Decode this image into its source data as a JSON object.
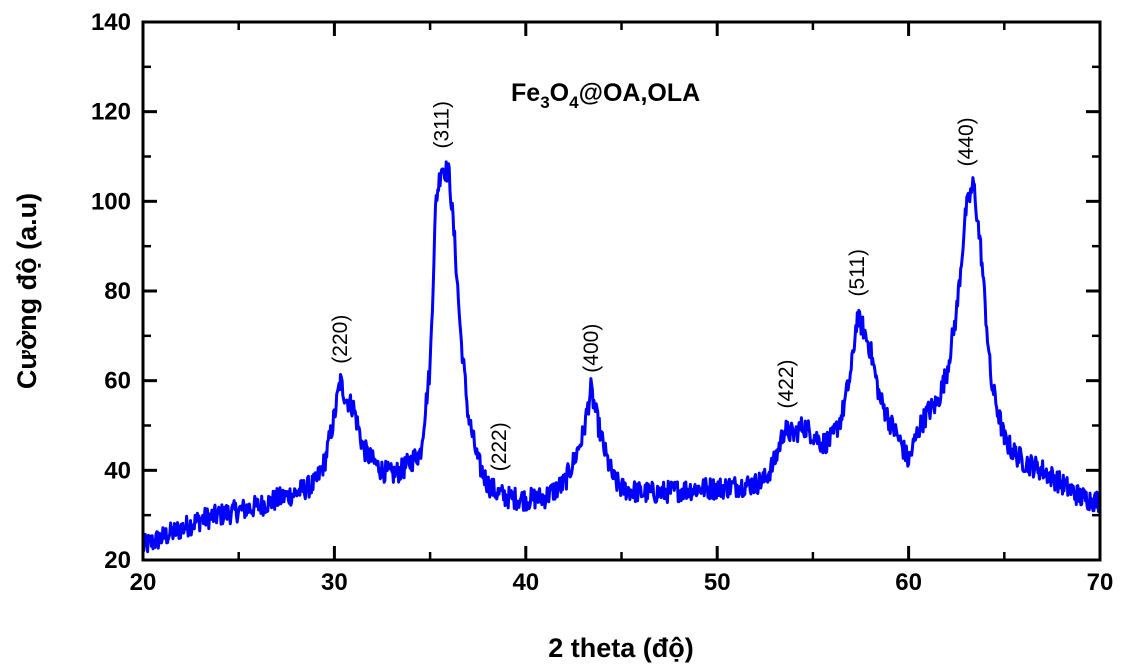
{
  "chart_data": {
    "type": "line",
    "title": "",
    "xlabel": "2 theta (độ)",
    "ylabel": "Cường độ (a.u)",
    "xlim": [
      20,
      70
    ],
    "ylim": [
      20,
      140
    ],
    "xticks": [
      20,
      30,
      40,
      50,
      60,
      70
    ],
    "yticks": [
      20,
      40,
      60,
      80,
      100,
      120,
      140
    ],
    "grid": false,
    "legend": {
      "placement": "top-center",
      "main": "Fe",
      "sub1": "3",
      "mid": "O",
      "sub2": "4",
      "suffix": "@OA,OLA"
    },
    "series": [
      {
        "color": "#0000ff",
        "x": [
          20,
          21,
          22,
          23,
          24,
          25,
          26,
          27,
          28,
          29,
          29.5,
          30,
          30.3,
          30.6,
          31,
          31.5,
          32,
          32.5,
          33,
          33.5,
          34,
          34.5,
          35,
          35.3,
          35.6,
          36,
          36.3,
          36.6,
          37,
          37.5,
          38,
          38.5,
          39,
          40,
          41,
          42,
          42.5,
          43,
          43.4,
          43.8,
          44.2,
          44.6,
          45,
          46,
          47,
          48,
          49,
          50,
          51,
          52,
          52.5,
          53,
          53.5,
          54,
          54.5,
          55,
          55.5,
          56,
          56.5,
          57,
          57.3,
          57.6,
          58,
          58.5,
          59,
          59.5,
          60,
          60.5,
          61,
          61.5,
          62,
          62.5,
          63,
          63.4,
          63.8,
          64.3,
          65,
          65.5,
          66,
          67,
          68,
          69,
          70
        ],
        "y": [
          23,
          25,
          27,
          29,
          30,
          31,
          32,
          33.5,
          35,
          37,
          42,
          52,
          60,
          56,
          54,
          45,
          42,
          40,
          39,
          40,
          42,
          44,
          63,
          100,
          108,
          106,
          90,
          70,
          52,
          42,
          37,
          35,
          34,
          33.5,
          34,
          37,
          42,
          48,
          58,
          50,
          43,
          38,
          36,
          35,
          35,
          35.5,
          36,
          36,
          36.5,
          37,
          38,
          42,
          49,
          48,
          50,
          48,
          46,
          47,
          52,
          62,
          74,
          72,
          67,
          56,
          51,
          47,
          42,
          49,
          53,
          55,
          62,
          75,
          98,
          104,
          88,
          60,
          47,
          44,
          42,
          40,
          37,
          34,
          33
        ]
      }
    ],
    "annotations": [
      {
        "label": "(220)",
        "x": 30.3,
        "y": 62
      },
      {
        "label": "(311)",
        "x": 35.6,
        "y": 110
      },
      {
        "label": "(222)",
        "x": 38.6,
        "y": 38
      },
      {
        "label": "(400)",
        "x": 43.4,
        "y": 60
      },
      {
        "label": "(422)",
        "x": 53.6,
        "y": 52
      },
      {
        "label": "(511)",
        "x": 57.3,
        "y": 77
      },
      {
        "label": "(440)",
        "x": 63.0,
        "y": 106
      }
    ]
  }
}
